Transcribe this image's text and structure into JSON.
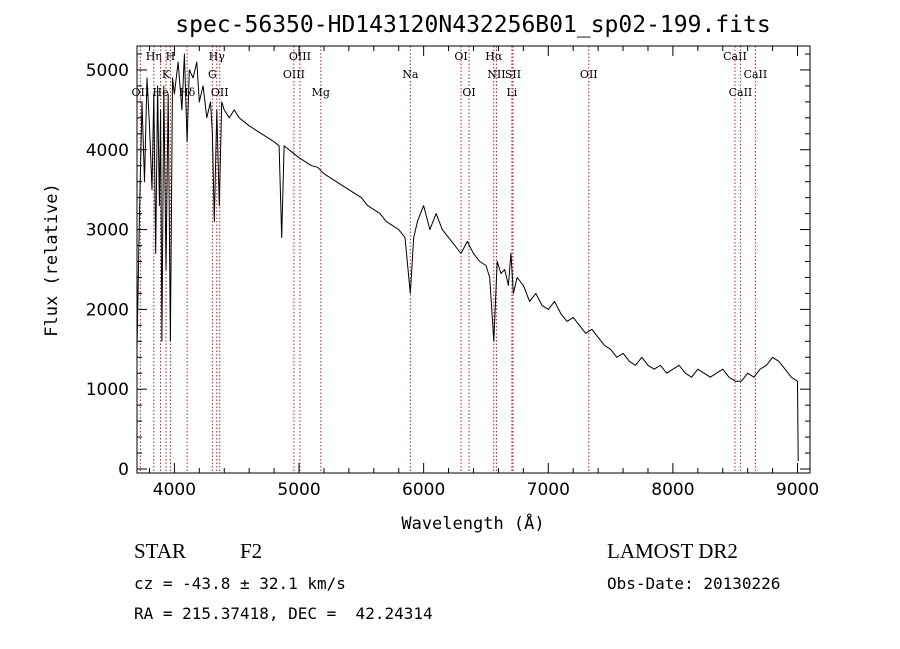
{
  "chart_data": {
    "type": "line",
    "title": "spec-56350-HD143120N432256B01_sp02-199.fits",
    "xlabel": "Wavelength (Å)",
    "ylabel": "Flux (relative)",
    "xlim": [
      3700,
      9100
    ],
    "ylim": [
      -50,
      5300
    ],
    "xticks": [
      4000,
      5000,
      6000,
      7000,
      8000,
      9000
    ],
    "yticks": [
      0,
      1000,
      2000,
      3000,
      4000,
      5000
    ],
    "grid": false,
    "line_color": "#000000",
    "marker_color": "#b22222",
    "series": [
      {
        "x": [
          3700,
          3720,
          3740,
          3760,
          3780,
          3800,
          3820,
          3835,
          3850,
          3865,
          3880,
          3889,
          3900,
          3915,
          3933,
          3950,
          3968,
          3985,
          4000,
          4030,
          4060,
          4080,
          4102,
          4120,
          4150,
          4180,
          4200,
          4230,
          4260,
          4290,
          4305,
          4320,
          4340,
          4360,
          4380,
          4400,
          4440,
          4480,
          4520,
          4560,
          4600,
          4650,
          4700,
          4750,
          4800,
          4840,
          4861,
          4880,
          4920,
          4960,
          5000,
          5050,
          5100,
          5150,
          5200,
          5250,
          5300,
          5350,
          5400,
          5450,
          5500,
          5550,
          5600,
          5650,
          5700,
          5750,
          5800,
          5850,
          5893,
          5920,
          5950,
          6000,
          6050,
          6100,
          6150,
          6200,
          6250,
          6300,
          6350,
          6400,
          6450,
          6500,
          6530,
          6563,
          6590,
          6620,
          6650,
          6680,
          6700,
          6720,
          6750,
          6800,
          6850,
          6900,
          6950,
          7000,
          7050,
          7100,
          7150,
          7200,
          7250,
          7300,
          7350,
          7400,
          7450,
          7500,
          7550,
          7600,
          7650,
          7700,
          7750,
          7800,
          7850,
          7900,
          7950,
          8000,
          8050,
          8100,
          8150,
          8200,
          8250,
          8300,
          8350,
          8400,
          8450,
          8500,
          8550,
          8600,
          8650,
          8700,
          8750,
          8800,
          8850,
          8900,
          8950,
          9000,
          9005
        ],
        "y": [
          1500,
          3200,
          4600,
          3600,
          4900,
          4300,
          3500,
          4700,
          2700,
          4800,
          3300,
          4500,
          1600,
          4800,
          2500,
          4700,
          1600,
          4900,
          4700,
          5100,
          4500,
          5200,
          4100,
          5000,
          4900,
          5100,
          4600,
          4800,
          4400,
          4600,
          4200,
          3100,
          4500,
          3300,
          4600,
          4500,
          4400,
          4500,
          4400,
          4350,
          4300,
          4250,
          4200,
          4150,
          4100,
          4050,
          2900,
          4050,
          4000,
          3950,
          3900,
          3850,
          3800,
          3780,
          3700,
          3650,
          3600,
          3550,
          3500,
          3450,
          3400,
          3300,
          3250,
          3200,
          3100,
          3050,
          3000,
          2900,
          2200,
          2900,
          3100,
          3300,
          3000,
          3200,
          3000,
          2900,
          2800,
          2700,
          2850,
          2700,
          2600,
          2550,
          2400,
          1600,
          2600,
          2450,
          2500,
          2300,
          2700,
          2200,
          2400,
          2300,
          2100,
          2200,
          2050,
          2000,
          2100,
          1950,
          1850,
          1900,
          1800,
          1700,
          1750,
          1650,
          1550,
          1500,
          1400,
          1450,
          1350,
          1300,
          1400,
          1300,
          1250,
          1300,
          1200,
          1250,
          1300,
          1200,
          1150,
          1250,
          1200,
          1150,
          1200,
          1250,
          1150,
          1100,
          1100,
          1200,
          1150,
          1250,
          1300,
          1400,
          1350,
          1250,
          1150,
          1100,
          100
        ]
      }
    ],
    "markers": [
      {
        "label": "Hη",
        "x": 3835,
        "row": 1
      },
      {
        "label": "OII",
        "x": 3727,
        "row": 3
      },
      {
        "label": "K",
        "x": 3933,
        "row": 2
      },
      {
        "label": "H",
        "x": 3968,
        "row": 1
      },
      {
        "label": "He",
        "x": 3889,
        "row": 3
      },
      {
        "label": "Hδ",
        "x": 4102,
        "row": 3
      },
      {
        "label": "Hγ",
        "x": 4340,
        "row": 1
      },
      {
        "label": "G",
        "x": 4305,
        "row": 2
      },
      {
        "label": "OII",
        "x": 4364,
        "row": 3
      },
      {
        "label": "OIII",
        "x": 5007,
        "row": 1
      },
      {
        "label": "OIII",
        "x": 4959,
        "row": 2
      },
      {
        "label": "Mg",
        "x": 5175,
        "row": 3
      },
      {
        "label": "Na",
        "x": 5893,
        "row": 2
      },
      {
        "label": "OI",
        "x": 6300,
        "row": 1
      },
      {
        "label": "OI",
        "x": 6364,
        "row": 3
      },
      {
        "label": "Hα",
        "x": 6563,
        "row": 1
      },
      {
        "label": "NII",
        "x": 6584,
        "row": 2
      },
      {
        "label": "SII",
        "x": 6717,
        "row": 2
      },
      {
        "label": "Li",
        "x": 6708,
        "row": 3
      },
      {
        "label": "OII",
        "x": 7325,
        "row": 2
      },
      {
        "label": "CaII",
        "x": 8498,
        "row": 1
      },
      {
        "label": "CaII",
        "x": 8662,
        "row": 2
      },
      {
        "label": "CaII",
        "x": 8542,
        "row": 3
      }
    ]
  },
  "info": {
    "object_class": "STAR",
    "subclass": "F2",
    "survey": "LAMOST DR2",
    "redshift": "cz = -43.8 ± 32.1 km/s",
    "obs_date": "Obs-Date: 20130226",
    "coords": "RA = 215.37418, DEC =  42.24314"
  }
}
